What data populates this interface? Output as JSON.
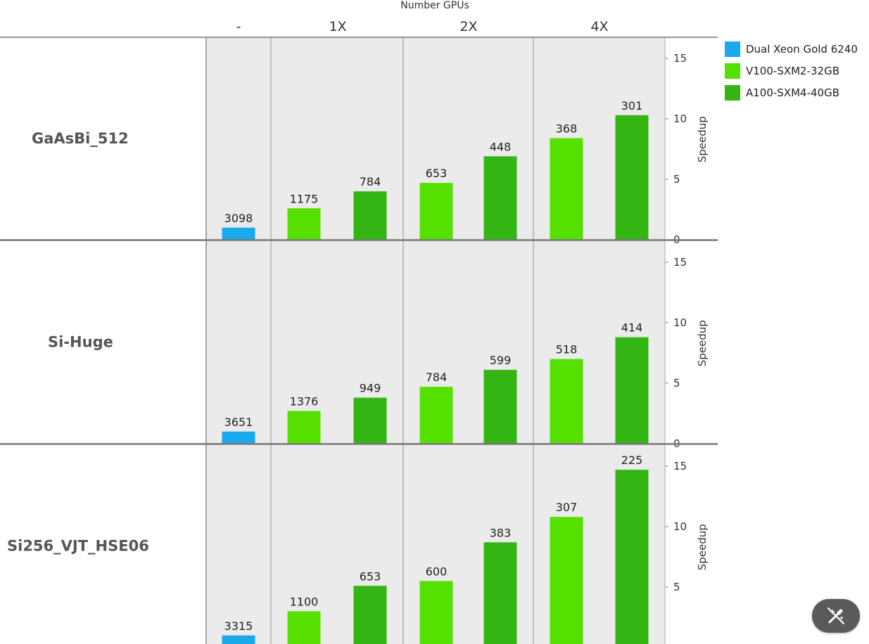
{
  "chart_data": {
    "type": "bar",
    "x_axis_title": "Number GPUs",
    "column_groups": [
      "-",
      "1X",
      "2X",
      "4X"
    ],
    "y_axis_title": "Speedup",
    "yticks": [
      0,
      5,
      10,
      15
    ],
    "ylim": [
      0,
      16.5
    ],
    "colors": {
      "Dual Xeon Gold 6240": "#1aaaeb",
      "V100-SXM2-32GB": "#55e000",
      "A100-SXM4-40GB": "#33b514"
    },
    "legend": [
      "Dual Xeon Gold 6240",
      "V100-SXM2-32GB",
      "A100-SXM4-40GB"
    ],
    "legend_position": "right",
    "panels": [
      {
        "label": "GaAsBi_512",
        "bars": [
          {
            "group": "-",
            "series": "Dual Xeon Gold 6240",
            "speedup": 1.0,
            "label": "3098"
          },
          {
            "group": "1X",
            "series": "V100-SXM2-32GB",
            "speedup": 2.6,
            "label": "1175"
          },
          {
            "group": "1X",
            "series": "A100-SXM4-40GB",
            "speedup": 4.0,
            "label": "784"
          },
          {
            "group": "2X",
            "series": "V100-SXM2-32GB",
            "speedup": 4.7,
            "label": "653"
          },
          {
            "group": "2X",
            "series": "A100-SXM4-40GB",
            "speedup": 6.9,
            "label": "448"
          },
          {
            "group": "4X",
            "series": "V100-SXM2-32GB",
            "speedup": 8.4,
            "label": "368"
          },
          {
            "group": "4X",
            "series": "A100-SXM4-40GB",
            "speedup": 10.3,
            "label": "301"
          }
        ]
      },
      {
        "label": "Si-Huge",
        "bars": [
          {
            "group": "-",
            "series": "Dual Xeon Gold 6240",
            "speedup": 1.0,
            "label": "3651"
          },
          {
            "group": "1X",
            "series": "V100-SXM2-32GB",
            "speedup": 2.7,
            "label": "1376"
          },
          {
            "group": "1X",
            "series": "A100-SXM4-40GB",
            "speedup": 3.8,
            "label": "949"
          },
          {
            "group": "2X",
            "series": "V100-SXM2-32GB",
            "speedup": 4.7,
            "label": "784"
          },
          {
            "group": "2X",
            "series": "A100-SXM4-40GB",
            "speedup": 6.1,
            "label": "599"
          },
          {
            "group": "4X",
            "series": "V100-SXM2-32GB",
            "speedup": 7.0,
            "label": "518"
          },
          {
            "group": "4X",
            "series": "A100-SXM4-40GB",
            "speedup": 8.8,
            "label": "414"
          }
        ]
      },
      {
        "label": "Si256_VJT_HSE06",
        "bars": [
          {
            "group": "-",
            "series": "Dual Xeon Gold 6240",
            "speedup": 1.0,
            "label": "3315"
          },
          {
            "group": "1X",
            "series": "V100-SXM2-32GB",
            "speedup": 3.0,
            "label": "1100"
          },
          {
            "group": "1X",
            "series": "A100-SXM4-40GB",
            "speedup": 5.1,
            "label": "653"
          },
          {
            "group": "2X",
            "series": "V100-SXM2-32GB",
            "speedup": 5.5,
            "label": "600"
          },
          {
            "group": "2X",
            "series": "A100-SXM4-40GB",
            "speedup": 8.7,
            "label": "383"
          },
          {
            "group": "4X",
            "series": "V100-SXM2-32GB",
            "speedup": 10.8,
            "label": "307"
          },
          {
            "group": "4X",
            "series": "A100-SXM4-40GB",
            "speedup": 14.7,
            "label": "225"
          }
        ]
      }
    ]
  },
  "ui": {
    "magic_button_icon": "magic-wand-icon"
  }
}
